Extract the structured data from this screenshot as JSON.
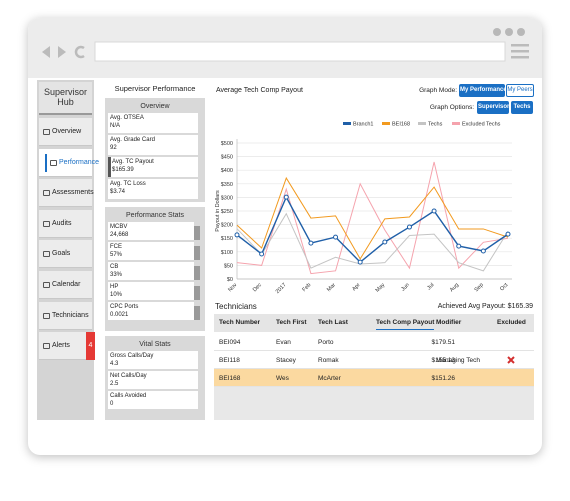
{
  "sidebar": {
    "title": "Supervisor Hub",
    "items": [
      "Overview",
      "Performance",
      "Assessments",
      "Audits",
      "Goals",
      "Calendar",
      "Technicians",
      "Alerts"
    ],
    "alert_count": 4
  },
  "summary": {
    "title": "Supervisor Performance",
    "panels": [
      {
        "title": "Overview",
        "items": [
          {
            "label": "Avg. OTSEA",
            "value": "N/A"
          },
          {
            "label": "Avg. Grade Card",
            "value": "92"
          },
          {
            "label": "Avg. TC Payout",
            "value": "$165.39"
          },
          {
            "label": "Avg. TC Loss",
            "value": "$3.74"
          }
        ]
      },
      {
        "title": "Performance Stats",
        "items": [
          {
            "label": "MCBV",
            "value": "24,668"
          },
          {
            "label": "FCE",
            "value": "57%"
          },
          {
            "label": "CB",
            "value": "33%"
          },
          {
            "label": "HP",
            "value": "10%"
          },
          {
            "label": "CPC Ports",
            "value": "0.0021"
          }
        ]
      },
      {
        "title": "Vital Stats",
        "items": [
          {
            "label": "Gross Calls/Day",
            "value": "4.3"
          },
          {
            "label": "Net Calls/Day",
            "value": "2.5"
          },
          {
            "label": "Calls Avoided",
            "value": "0"
          }
        ]
      }
    ]
  },
  "graph_controls": {
    "mode_label": "Graph Mode:",
    "modes": [
      "My Performance",
      "My Peers"
    ],
    "options_label": "Graph Options:",
    "options": [
      "Supervisor",
      "Techs"
    ]
  },
  "chart_data": {
    "type": "line",
    "title": "Average Tech Comp Payout",
    "ylabel": "Payout in Dollars",
    "categories": [
      "Nov",
      "Dec",
      "2017",
      "Feb",
      "Mar",
      "Apr",
      "May",
      "Jun",
      "Jul",
      "Aug",
      "Sep",
      "Oct"
    ],
    "series": [
      {
        "name": "Branch1",
        "color": "#1f5fa8",
        "marker": true,
        "values": [
          162,
          92,
          301,
          132,
          154,
          62,
          136,
          191,
          250,
          121,
          103,
          165
        ]
      },
      {
        "name": "BEI168",
        "color": "#f29a1f",
        "values": [
          198,
          114,
          371,
          224,
          232,
          74,
          221,
          228,
          338,
          184,
          184,
          154
        ]
      },
      {
        "name": "Techs",
        "color": "#c4c4c4",
        "values": [
          185,
          90,
          240,
          40,
          80,
          55,
          60,
          160,
          165,
          60,
          30,
          175
        ]
      },
      {
        "name": "Excluded Techs",
        "color": "#f5a3ad",
        "values": [
          60,
          50,
          330,
          20,
          30,
          350,
          180,
          40,
          430,
          40,
          135,
          150
        ]
      }
    ],
    "ylim": [
      0,
      500
    ],
    "yticks": [
      {
        "value": 0,
        "label": "$0"
      },
      {
        "value": 50,
        "label": "$50"
      },
      {
        "value": 100,
        "label": "$100"
      },
      {
        "value": 150,
        "label": "$150"
      },
      {
        "value": 200,
        "label": "$200"
      },
      {
        "value": 250,
        "label": "$250"
      },
      {
        "value": 300,
        "label": "$300"
      },
      {
        "value": 350,
        "label": "$350"
      },
      {
        "value": 400,
        "label": "$400"
      },
      {
        "value": 450,
        "label": "$450"
      },
      {
        "value": 500,
        "label": "$500"
      }
    ],
    "grid": true,
    "legend": "top-right"
  },
  "technicians": {
    "title": "Technicians",
    "summary": "Achieved Avg Payout: $165.39",
    "columns": [
      "Tech Number",
      "Tech First",
      "Tech Last",
      "Tech Comp Payout",
      "Modifier",
      "Excluded"
    ],
    "rows": [
      {
        "cells": [
          "BEI094",
          "Evan",
          "Porto",
          "$179.51"
        ]
      },
      {
        "cells": [
          "BEI118",
          "Stacey",
          "Romak",
          "$155.13",
          "Managing Tech"
        ],
        "excluded": true
      },
      {
        "cells": [
          "BEI168",
          "Wes",
          "McArter",
          "$151.26"
        ]
      }
    ]
  }
}
